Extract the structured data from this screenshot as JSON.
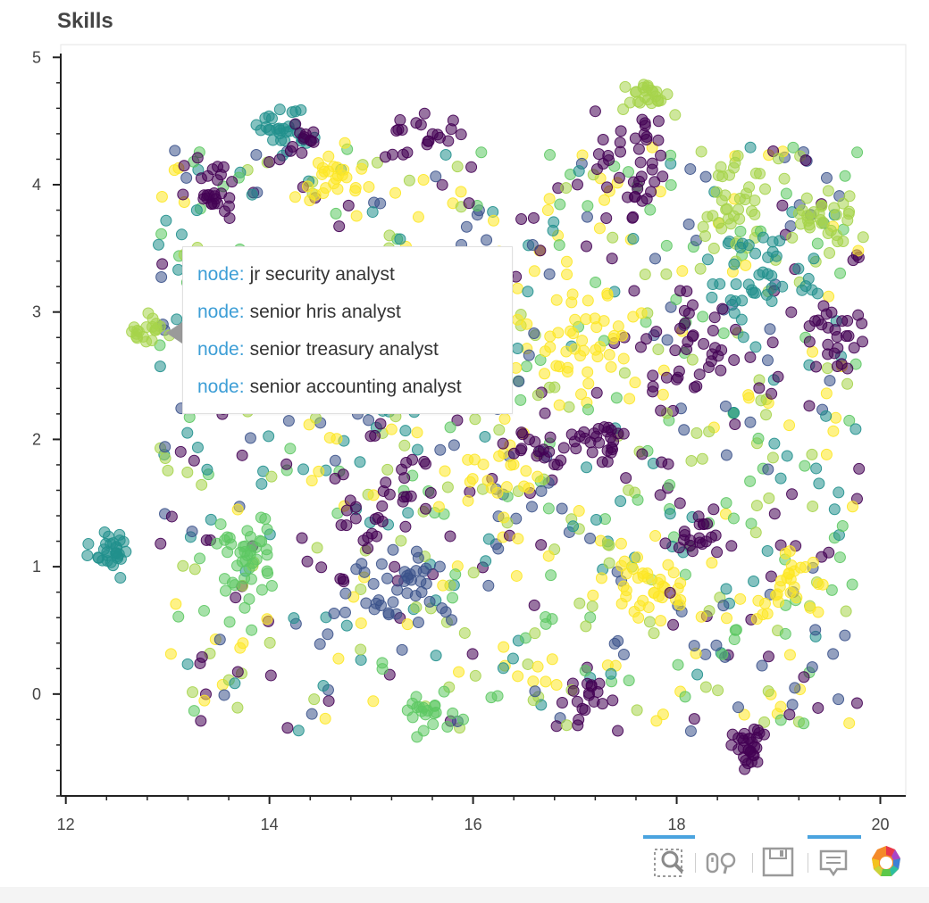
{
  "title": "Skills",
  "chart_data": {
    "type": "scatter",
    "title": "Skills",
    "xlabel": "",
    "ylabel": "",
    "xlim": [
      11.95,
      20.25
    ],
    "ylim": [
      -0.8,
      5.1
    ],
    "xticks": [
      "12",
      "14",
      "16",
      "18",
      "20"
    ],
    "yticks": [
      "0",
      "1",
      "2",
      "3",
      "4",
      "5"
    ],
    "grid": true,
    "palette": [
      "#440154",
      "#3b528b",
      "#21908d",
      "#5dc863",
      "#a6d44a",
      "#fde725"
    ],
    "marker_alpha": 0.55,
    "clusters": [
      {
        "x": 12.45,
        "y": 1.1,
        "sx": 0.09,
        "sy": 0.08,
        "n": 30,
        "color": 2
      },
      {
        "x": 12.8,
        "y": 2.87,
        "sx": 0.12,
        "sy": 0.06,
        "n": 20,
        "color": 4
      },
      {
        "x": 13.45,
        "y": 4.0,
        "sx": 0.12,
        "sy": 0.12,
        "n": 28,
        "color": 0
      },
      {
        "x": 13.75,
        "y": 1.1,
        "sx": 0.18,
        "sy": 0.16,
        "n": 36,
        "color": 3
      },
      {
        "x": 14.15,
        "y": 4.45,
        "sx": 0.12,
        "sy": 0.08,
        "n": 30,
        "color": 2
      },
      {
        "x": 14.3,
        "y": 4.35,
        "sx": 0.1,
        "sy": 0.08,
        "n": 14,
        "color": 0
      },
      {
        "x": 14.6,
        "y": 4.05,
        "sx": 0.15,
        "sy": 0.1,
        "n": 24,
        "color": 5
      },
      {
        "x": 15.0,
        "y": 1.45,
        "sx": 0.35,
        "sy": 0.3,
        "n": 40,
        "color": 0
      },
      {
        "x": 15.2,
        "y": 0.85,
        "sx": 0.3,
        "sy": 0.15,
        "n": 40,
        "color": 1
      },
      {
        "x": 15.45,
        "y": 4.4,
        "sx": 0.2,
        "sy": 0.1,
        "n": 20,
        "color": 0
      },
      {
        "x": 15.5,
        "y": -0.1,
        "sx": 0.2,
        "sy": 0.12,
        "n": 20,
        "color": 3
      },
      {
        "x": 16.3,
        "y": 1.7,
        "sx": 0.2,
        "sy": 0.2,
        "n": 24,
        "color": 5
      },
      {
        "x": 16.6,
        "y": 1.95,
        "sx": 0.2,
        "sy": 0.12,
        "n": 20,
        "color": 0
      },
      {
        "x": 17.15,
        "y": 2.9,
        "sx": 0.25,
        "sy": 0.25,
        "n": 40,
        "color": 5
      },
      {
        "x": 17.3,
        "y": 2.0,
        "sx": 0.2,
        "sy": 0.1,
        "n": 24,
        "color": 0
      },
      {
        "x": 17.55,
        "y": 4.2,
        "sx": 0.25,
        "sy": 0.2,
        "n": 36,
        "color": 0
      },
      {
        "x": 17.7,
        "y": 4.7,
        "sx": 0.1,
        "sy": 0.06,
        "n": 24,
        "color": 4
      },
      {
        "x": 17.7,
        "y": 0.85,
        "sx": 0.2,
        "sy": 0.15,
        "n": 36,
        "color": 5
      },
      {
        "x": 17.2,
        "y": -0.05,
        "sx": 0.15,
        "sy": 0.1,
        "n": 16,
        "color": 0
      },
      {
        "x": 18.2,
        "y": 1.2,
        "sx": 0.15,
        "sy": 0.12,
        "n": 24,
        "color": 0
      },
      {
        "x": 18.2,
        "y": 2.6,
        "sx": 0.25,
        "sy": 0.25,
        "n": 36,
        "color": 0
      },
      {
        "x": 18.6,
        "y": 3.9,
        "sx": 0.25,
        "sy": 0.2,
        "n": 36,
        "color": 4
      },
      {
        "x": 18.7,
        "y": -0.4,
        "sx": 0.1,
        "sy": 0.1,
        "n": 30,
        "color": 0
      },
      {
        "x": 18.8,
        "y": 3.25,
        "sx": 0.25,
        "sy": 0.2,
        "n": 40,
        "color": 2
      },
      {
        "x": 19.1,
        "y": 0.9,
        "sx": 0.2,
        "sy": 0.12,
        "n": 24,
        "color": 5
      },
      {
        "x": 19.5,
        "y": 3.75,
        "sx": 0.2,
        "sy": 0.12,
        "n": 30,
        "color": 4
      },
      {
        "x": 19.6,
        "y": 2.8,
        "sx": 0.15,
        "sy": 0.15,
        "n": 24,
        "color": 0
      }
    ],
    "background": {
      "xmin": 12.9,
      "xmax": 19.8,
      "ymin": -0.3,
      "ymax": 4.3,
      "n": 900
    },
    "hover_point": {
      "x": 13.0,
      "y": 2.82
    }
  },
  "tooltip": {
    "rows": [
      {
        "key": "node:",
        "value": "jr security analyst"
      },
      {
        "key": "node:",
        "value": "senior hris analyst"
      },
      {
        "key": "node:",
        "value": "senior treasury analyst"
      },
      {
        "key": "node:",
        "value": "senior accounting analyst"
      }
    ]
  },
  "toolbar": {
    "tools": [
      {
        "icon": "box-zoom-icon",
        "active": true
      },
      {
        "icon": "wheel-zoom-icon",
        "active": false
      },
      {
        "icon": "save-icon",
        "active": false
      },
      {
        "icon": "hover-icon",
        "active": true
      },
      {
        "icon": "bokeh-logo-icon",
        "active": false
      }
    ],
    "accent": "#4aa3df"
  }
}
